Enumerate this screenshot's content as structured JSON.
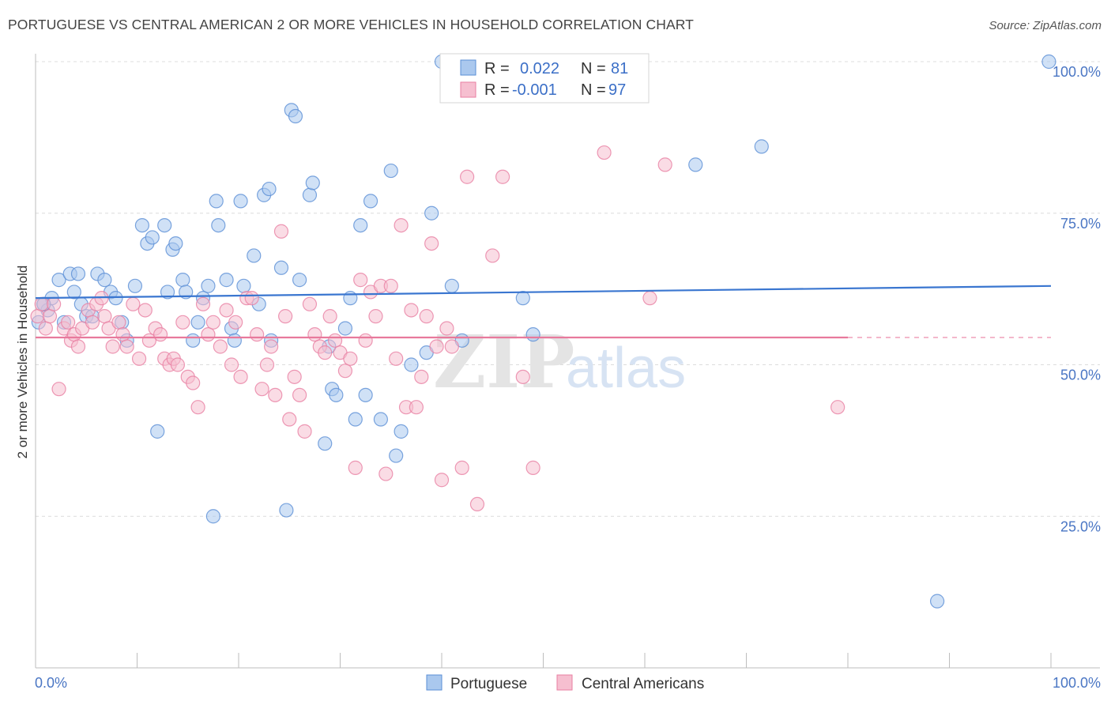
{
  "title": "PORTUGUESE VS CENTRAL AMERICAN 2 OR MORE VEHICLES IN HOUSEHOLD CORRELATION CHART",
  "source": "Source: ZipAtlas.com",
  "watermark": {
    "zip": "ZIP",
    "atlas": "atlas"
  },
  "legend": {
    "r_label": "R =",
    "n_label": "N =",
    "rows": [
      {
        "r": "0.022",
        "n": "81",
        "color": "#aac8ee",
        "stroke": "#5b8fd6"
      },
      {
        "r": "-0.001",
        "n": "97",
        "color": "#f6bfd0",
        "stroke": "#e87fa2"
      }
    ]
  },
  "chart_data": {
    "type": "scatter",
    "title": "PORTUGUESE VS CENTRAL AMERICAN 2 OR MORE VEHICLES IN HOUSEHOLD CORRELATION CHART",
    "xlabel": "",
    "ylabel": "2 or more Vehicles in Household",
    "xlim": [
      0,
      100
    ],
    "ylim": [
      0,
      100
    ],
    "x_tick_labels": [
      "0.0%",
      "100.0%"
    ],
    "y_tick_labels": [
      "25.0%",
      "50.0%",
      "75.0%",
      "100.0%"
    ],
    "y_ticks": [
      25,
      50,
      75,
      100
    ],
    "grid": true,
    "legend_position": "bottom",
    "series": [
      {
        "name": "Portuguese",
        "color": "#aac8ee",
        "stroke": "#5b8fd6",
        "trend": {
          "x": [
            0,
            100
          ],
          "y": [
            61.0,
            63.0
          ],
          "color": "#3a76d0"
        },
        "points": [
          [
            0.3,
            57
          ],
          [
            0.8,
            60
          ],
          [
            1.2,
            59
          ],
          [
            1.6,
            61
          ],
          [
            2.3,
            64
          ],
          [
            2.8,
            57
          ],
          [
            3.4,
            65
          ],
          [
            3.8,
            62
          ],
          [
            4.2,
            65
          ],
          [
            4.5,
            60
          ],
          [
            5.0,
            58
          ],
          [
            5.6,
            58
          ],
          [
            6.1,
            65
          ],
          [
            6.8,
            64
          ],
          [
            7.4,
            62
          ],
          [
            7.9,
            61
          ],
          [
            8.5,
            57
          ],
          [
            9.0,
            54
          ],
          [
            9.8,
            63
          ],
          [
            10.5,
            73
          ],
          [
            11.0,
            70
          ],
          [
            11.5,
            71
          ],
          [
            12.0,
            39
          ],
          [
            12.7,
            73
          ],
          [
            13.0,
            62
          ],
          [
            13.5,
            69
          ],
          [
            13.8,
            70
          ],
          [
            14.5,
            64
          ],
          [
            14.8,
            62
          ],
          [
            15.5,
            54
          ],
          [
            16.0,
            57
          ],
          [
            16.5,
            61
          ],
          [
            17.0,
            63
          ],
          [
            17.5,
            25
          ],
          [
            17.8,
            77
          ],
          [
            18.0,
            73
          ],
          [
            18.8,
            64
          ],
          [
            19.3,
            56
          ],
          [
            19.6,
            54
          ],
          [
            20.2,
            77
          ],
          [
            20.5,
            63
          ],
          [
            21.5,
            68
          ],
          [
            22.0,
            60
          ],
          [
            22.5,
            78
          ],
          [
            23.0,
            79
          ],
          [
            23.2,
            54
          ],
          [
            24.2,
            66
          ],
          [
            24.7,
            26
          ],
          [
            25.2,
            92
          ],
          [
            25.6,
            91
          ],
          [
            26.0,
            64
          ],
          [
            27.0,
            78
          ],
          [
            27.3,
            80
          ],
          [
            28.5,
            37
          ],
          [
            28.9,
            53
          ],
          [
            29.2,
            46
          ],
          [
            29.6,
            45
          ],
          [
            30.5,
            56
          ],
          [
            31.0,
            61
          ],
          [
            31.5,
            41
          ],
          [
            32.0,
            73
          ],
          [
            32.5,
            45
          ],
          [
            33.0,
            77
          ],
          [
            34.0,
            41
          ],
          [
            35.0,
            82
          ],
          [
            35.5,
            35
          ],
          [
            36.0,
            39
          ],
          [
            37.0,
            50
          ],
          [
            38.5,
            52
          ],
          [
            39.0,
            75
          ],
          [
            40.0,
            100
          ],
          [
            41.0,
            63
          ],
          [
            42.0,
            54
          ],
          [
            45.5,
            100
          ],
          [
            48.0,
            61
          ],
          [
            49.0,
            55
          ],
          [
            65.0,
            83
          ],
          [
            71.5,
            86
          ],
          [
            88.8,
            11
          ],
          [
            99.8,
            100
          ],
          [
            0.8,
            60
          ]
        ]
      },
      {
        "name": "Central Americans",
        "color": "#f6bfd0",
        "stroke": "#e87fa2",
        "trend": {
          "x": [
            0,
            80
          ],
          "y": [
            54.5,
            54.5
          ],
          "dashed_to": 100,
          "color": "#e8799c"
        },
        "points": [
          [
            0.2,
            58
          ],
          [
            0.6,
            60
          ],
          [
            1.0,
            56
          ],
          [
            1.4,
            58
          ],
          [
            1.8,
            60
          ],
          [
            2.3,
            46
          ],
          [
            2.8,
            56
          ],
          [
            3.2,
            57
          ],
          [
            3.5,
            54
          ],
          [
            3.8,
            55
          ],
          [
            4.2,
            53
          ],
          [
            4.6,
            56
          ],
          [
            5.2,
            59
          ],
          [
            5.6,
            57
          ],
          [
            6.0,
            60
          ],
          [
            6.5,
            61
          ],
          [
            6.8,
            58
          ],
          [
            7.2,
            56
          ],
          [
            7.6,
            53
          ],
          [
            8.2,
            57
          ],
          [
            8.6,
            55
          ],
          [
            9.0,
            53
          ],
          [
            9.6,
            60
          ],
          [
            10.2,
            51
          ],
          [
            10.8,
            59
          ],
          [
            11.2,
            54
          ],
          [
            11.8,
            56
          ],
          [
            12.3,
            55
          ],
          [
            12.7,
            51
          ],
          [
            13.2,
            50
          ],
          [
            13.6,
            51
          ],
          [
            14.0,
            50
          ],
          [
            14.5,
            57
          ],
          [
            15.0,
            48
          ],
          [
            15.5,
            47
          ],
          [
            16.0,
            43
          ],
          [
            16.5,
            60
          ],
          [
            17.0,
            55
          ],
          [
            17.5,
            57
          ],
          [
            18.2,
            53
          ],
          [
            18.8,
            59
          ],
          [
            19.3,
            50
          ],
          [
            19.7,
            57
          ],
          [
            20.2,
            48
          ],
          [
            20.8,
            61
          ],
          [
            21.3,
            61
          ],
          [
            21.8,
            55
          ],
          [
            22.3,
            46
          ],
          [
            22.8,
            50
          ],
          [
            23.2,
            53
          ],
          [
            23.6,
            45
          ],
          [
            24.2,
            72
          ],
          [
            24.6,
            58
          ],
          [
            25.0,
            41
          ],
          [
            25.5,
            48
          ],
          [
            26.0,
            45
          ],
          [
            26.5,
            39
          ],
          [
            27.0,
            60
          ],
          [
            27.5,
            55
          ],
          [
            28.0,
            53
          ],
          [
            28.5,
            52
          ],
          [
            29.0,
            58
          ],
          [
            29.5,
            54
          ],
          [
            30.0,
            52
          ],
          [
            30.5,
            49
          ],
          [
            31.0,
            51
          ],
          [
            31.5,
            33
          ],
          [
            32.0,
            64
          ],
          [
            32.5,
            54
          ],
          [
            33.0,
            62
          ],
          [
            33.5,
            58
          ],
          [
            34.0,
            63
          ],
          [
            34.5,
            32
          ],
          [
            35.0,
            63
          ],
          [
            35.5,
            51
          ],
          [
            36.0,
            73
          ],
          [
            36.5,
            43
          ],
          [
            37.0,
            59
          ],
          [
            37.5,
            43
          ],
          [
            38.0,
            48
          ],
          [
            38.5,
            58
          ],
          [
            39.0,
            70
          ],
          [
            39.5,
            53
          ],
          [
            40.0,
            31
          ],
          [
            40.5,
            56
          ],
          [
            41.0,
            53
          ],
          [
            42.0,
            33
          ],
          [
            42.5,
            81
          ],
          [
            43.5,
            27
          ],
          [
            45.0,
            68
          ],
          [
            46.0,
            81
          ],
          [
            48.0,
            48
          ],
          [
            49.0,
            33
          ],
          [
            56.0,
            85
          ],
          [
            60.5,
            61
          ],
          [
            62.0,
            83
          ],
          [
            79.0,
            43
          ]
        ]
      }
    ]
  },
  "bottom_legend": [
    {
      "label": "Portuguese",
      "color": "#aac8ee",
      "stroke": "#5b8fd6"
    },
    {
      "label": "Central Americans",
      "color": "#f6bfd0",
      "stroke": "#e87fa2"
    }
  ]
}
